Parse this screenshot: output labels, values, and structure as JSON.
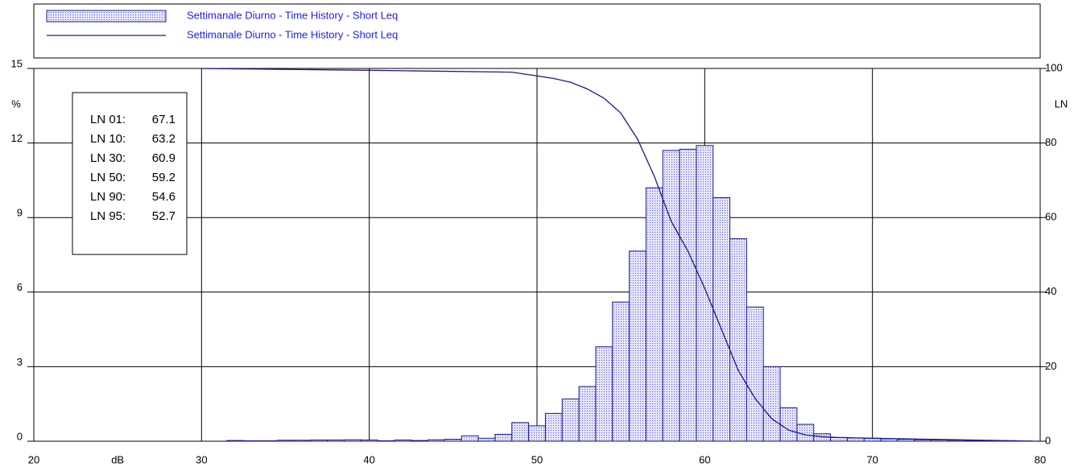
{
  "chart_data": {
    "type": "histogram",
    "xlabel": "dB",
    "ylabel": "%",
    "y2label": "LN",
    "xlim": [
      20,
      80
    ],
    "xticks": [
      20,
      30,
      40,
      50,
      60,
      70,
      80
    ],
    "ylim": [
      0,
      15
    ],
    "yticks": [
      0,
      3,
      6,
      9,
      12,
      15
    ],
    "y2lim": [
      0,
      100
    ],
    "y2ticks": [
      0,
      20,
      40,
      60,
      80,
      100
    ],
    "grid": true,
    "bins": [
      31.5,
      32.5,
      33.5,
      34.5,
      35.5,
      36.5,
      37.5,
      38.5,
      39.5,
      40.5,
      41.5,
      42.5,
      43.5,
      44.5,
      45.5,
      46.5,
      47.5,
      48.5,
      49.5,
      50.5,
      51.5,
      52.5,
      53.5,
      54.5,
      55.5,
      56.5,
      57.5,
      58.5,
      59.5,
      60.5,
      61.5,
      62.5,
      63.5,
      64.5,
      65.5,
      66.5,
      67.5,
      68.5,
      69.5,
      70.5,
      71.5,
      72.5,
      73.5,
      74.5,
      75.5,
      76.5,
      77.5,
      78.5,
      79.5
    ],
    "series": [
      {
        "name": "Settimanale Diurno - Time History - Short Leq",
        "type": "histogram",
        "color": "#1a1a8c",
        "values": [
          0.03,
          0.02,
          0.02,
          0.04,
          0.04,
          0.05,
          0.05,
          0.06,
          0.05,
          0.02,
          0.05,
          0.03,
          0.06,
          0.08,
          0.22,
          0.12,
          0.28,
          0.75,
          0.62,
          1.12,
          1.7,
          2.2,
          3.8,
          5.6,
          7.65,
          10.2,
          11.7,
          11.75,
          11.9,
          9.8,
          8.15,
          5.4,
          3.0,
          1.35,
          0.68,
          0.3,
          0.15,
          0.13,
          0.12,
          0.1,
          0.08,
          0.06,
          0.05,
          0.04,
          0.03,
          0.03,
          0.02,
          0.01
        ]
      },
      {
        "name": "Settimanale Diurno - Time History - Short Leq",
        "type": "line",
        "axis": "y2",
        "color": "#1a1a8c",
        "x": [
          30,
          40,
          48.5,
          50,
          51,
          52,
          53,
          54,
          55,
          56,
          57,
          58,
          59,
          60,
          61,
          62,
          63,
          64,
          65,
          66,
          67,
          68,
          70,
          75,
          80
        ],
        "values": [
          100,
          99.5,
          99,
          98,
          97.3,
          96.3,
          94.5,
          92,
          88,
          81,
          71,
          59,
          51,
          41,
          30,
          19,
          11.5,
          6,
          3,
          1.7,
          1.2,
          1.0,
          0.8,
          0.4,
          0
        ]
      }
    ],
    "annotation_box": [
      {
        "label": "LN 01:",
        "value": 67.1
      },
      {
        "label": "LN 10:",
        "value": 63.2
      },
      {
        "label": "LN 30:",
        "value": 60.9
      },
      {
        "label": "LN 50:",
        "value": 59.2
      },
      {
        "label": "LN 90:",
        "value": 54.6
      },
      {
        "label": "LN 95:",
        "value": 52.7
      }
    ]
  }
}
